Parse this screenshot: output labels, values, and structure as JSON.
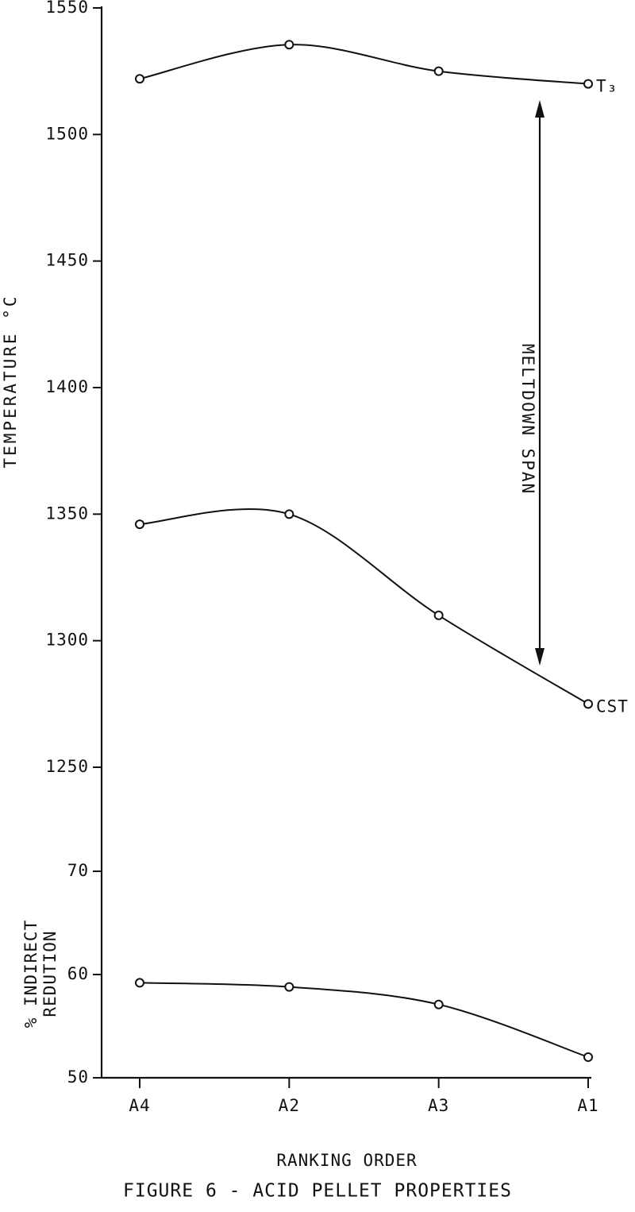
{
  "chart_data": [
    {
      "type": "line",
      "y_label": "TEMPERATURE °C",
      "ylim": [
        1250,
        1550
      ],
      "yticks": [
        1250,
        1300,
        1350,
        1400,
        1450,
        1500,
        1550
      ],
      "color": "#111111",
      "series": [
        {
          "name": "T₃",
          "values": [
            1522,
            1535.5,
            1525,
            1520
          ]
        },
        {
          "name": "CST",
          "values": [
            1346,
            1350,
            1310,
            1275
          ]
        }
      ],
      "annotation": "MELTDOWN  SPAN"
    },
    {
      "type": "line",
      "title": "FIGURE 6 -  ACID PELLET PROPERTIES",
      "x_label": "RANKING ORDER",
      "y_label": [
        "% INDIRECT",
        "REDUTION"
      ],
      "categories": [
        "A4",
        "A2",
        "A3",
        "A1"
      ],
      "ylim": [
        50,
        70
      ],
      "yticks": [
        50,
        60,
        70
      ],
      "color": "#111111",
      "series": [
        {
          "values": [
            59.2,
            58.8,
            57.1,
            52
          ]
        }
      ]
    }
  ]
}
